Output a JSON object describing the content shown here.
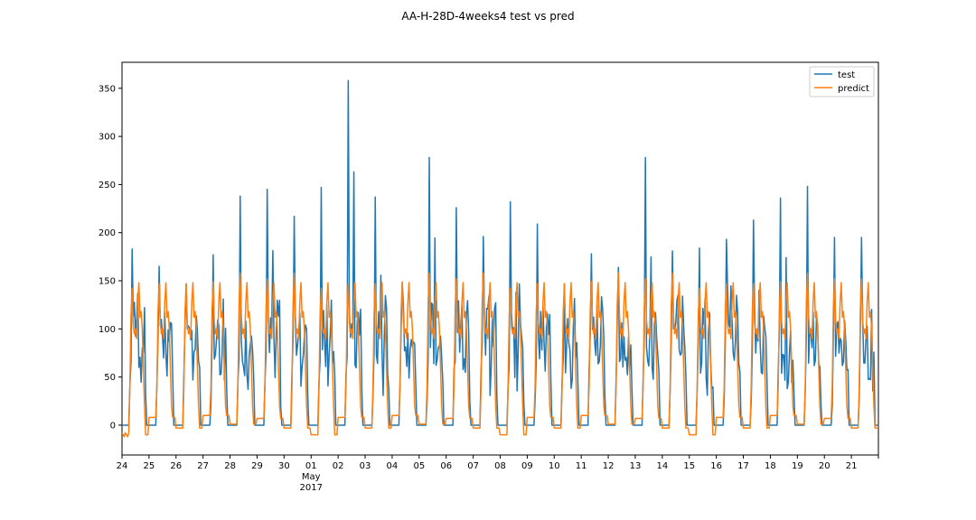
{
  "chart_data": {
    "type": "line",
    "title": "AA-H-28D-4weeks4 test vs pred",
    "xlabel": "",
    "ylabel": "",
    "xlim": [
      "2017-04-24 00:00",
      "2017-05-22 00:00"
    ],
    "ylim": [
      -31,
      377
    ],
    "y_ticks": [
      0,
      50,
      100,
      150,
      200,
      250,
      300,
      350
    ],
    "x_ticks": [
      {
        "date": "2017-04-24",
        "label": "24"
      },
      {
        "date": "2017-04-25",
        "label": "25"
      },
      {
        "date": "2017-04-26",
        "label": "26"
      },
      {
        "date": "2017-04-27",
        "label": "27"
      },
      {
        "date": "2017-04-28",
        "label": "28"
      },
      {
        "date": "2017-04-29",
        "label": "29"
      },
      {
        "date": "2017-04-30",
        "label": "30"
      },
      {
        "date": "2017-05-01",
        "label": "01",
        "sub1": "May",
        "sub2": "2017"
      },
      {
        "date": "2017-05-02",
        "label": "02"
      },
      {
        "date": "2017-05-03",
        "label": "03"
      },
      {
        "date": "2017-05-04",
        "label": "04"
      },
      {
        "date": "2017-05-05",
        "label": "05"
      },
      {
        "date": "2017-05-06",
        "label": "06"
      },
      {
        "date": "2017-05-07",
        "label": "07"
      },
      {
        "date": "2017-05-08",
        "label": "08"
      },
      {
        "date": "2017-05-09",
        "label": "09"
      },
      {
        "date": "2017-05-10",
        "label": "10"
      },
      {
        "date": "2017-05-11",
        "label": "11"
      },
      {
        "date": "2017-05-12",
        "label": "12"
      },
      {
        "date": "2017-05-13",
        "label": "13"
      },
      {
        "date": "2017-05-14",
        "label": "14"
      },
      {
        "date": "2017-05-15",
        "label": "15"
      },
      {
        "date": "2017-05-16",
        "label": "16"
      },
      {
        "date": "2017-05-17",
        "label": "17"
      },
      {
        "date": "2017-05-18",
        "label": "18"
      },
      {
        "date": "2017-05-19",
        "label": "19"
      },
      {
        "date": "2017-05-20",
        "label": "20"
      },
      {
        "date": "2017-05-21",
        "label": "21"
      }
    ],
    "legend": {
      "position": "top-right",
      "entries": [
        "test",
        "predict"
      ]
    },
    "grid": false,
    "series": [
      {
        "name": "test",
        "color": "#1f77b4",
        "peak_values": [
          183,
          165,
          147,
          177,
          238,
          245,
          217,
          247,
          358,
          237,
          148,
          278,
          226,
          196,
          232,
          209,
          147,
          178,
          164,
          278,
          181,
          184,
          193,
          213,
          236,
          248,
          195
        ]
      },
      {
        "name": "predict",
        "color": "#ff7f0e",
        "peak_values": [
          142,
          147,
          147,
          149,
          158,
          152,
          158,
          142,
          147,
          147,
          149,
          158,
          152,
          158,
          142,
          147,
          147,
          149,
          158,
          152,
          158,
          142,
          147,
          147,
          149,
          158,
          152
        ]
      }
    ]
  }
}
